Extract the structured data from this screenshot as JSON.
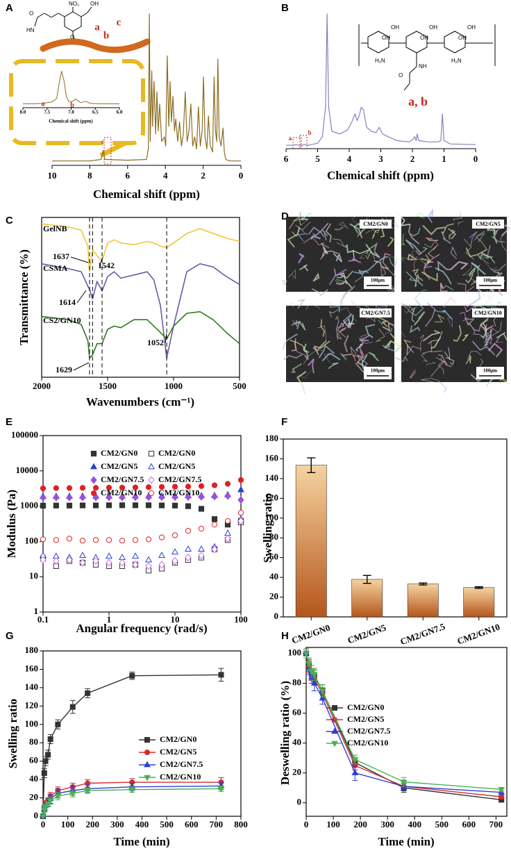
{
  "chart_data": [
    {
      "type": "line",
      "label": "A",
      "xlabel": "Chemical shift (ppm)",
      "xlim": [
        10,
        0
      ],
      "xticks": [
        10,
        8,
        6,
        4,
        2,
        0
      ],
      "ylim": [
        0,
        100
      ],
      "color": "#8b6c1e",
      "x": [
        10,
        8,
        7.4,
        7.3,
        7.2,
        6,
        5.0,
        4.9,
        4.85,
        4.8,
        4.72,
        4.68,
        4.6,
        4.52,
        4.45,
        4.38,
        4.3,
        4.2,
        4.05,
        3.98,
        3.9,
        3.82,
        3.75,
        3.68,
        3.6,
        3.52,
        3.45,
        3.35,
        3.25,
        3.15,
        3.05,
        2.95,
        2.85,
        2.75,
        2.65,
        2.55,
        2.45,
        2.35,
        2.25,
        2.15,
        2.05,
        1.98,
        1.9,
        1.8,
        1.72,
        1.62,
        1.5,
        1.42,
        1.35,
        1.28,
        1.22,
        1.15,
        1.05,
        0.95,
        0.88,
        0.8,
        0.6,
        0
      ],
      "values": [
        2,
        2,
        3,
        9,
        3,
        2.5,
        3,
        10,
        100,
        15,
        62,
        25,
        55,
        20,
        48,
        22,
        40,
        15,
        18,
        12,
        72,
        25,
        55,
        28,
        45,
        22,
        30,
        15,
        28,
        12,
        20,
        48,
        15,
        22,
        40,
        12,
        18,
        10,
        38,
        12,
        22,
        58,
        18,
        10,
        32,
        12,
        8,
        58,
        22,
        15,
        70,
        18,
        12,
        24,
        8,
        3,
        2,
        2
      ],
      "structure_labels": [
        "NO₂",
        "OH",
        "O",
        "HN",
        "O"
      ],
      "annotations": [
        "a",
        "b",
        "c",
        "c"
      ]
    },
    {
      "type": "line",
      "xlabel": "Chemical shift (ppm)",
      "xlim": [
        8,
        6
      ],
      "xticks": [
        {
          "value": 8,
          "label": "8.0"
        },
        7.5,
        {
          "value": 7,
          "label": "7.0"
        },
        6.5,
        {
          "value": 6,
          "label": "6.0"
        }
      ],
      "ylim": [
        0,
        100
      ],
      "color": "#8b6c1e",
      "x": [
        8,
        7.8,
        7.6,
        7.4,
        7.3,
        7.25,
        7.2,
        7.15,
        7.1,
        7.05,
        7.0,
        6.95,
        6.9,
        6.85,
        6.8,
        6.7,
        6.6,
        6.4,
        6.2,
        6.0
      ],
      "values": [
        5,
        5,
        6,
        10,
        20,
        60,
        95,
        70,
        25,
        12,
        10,
        14,
        18,
        12,
        8,
        12,
        6,
        5,
        5,
        5
      ],
      "annotations": [
        "a",
        "b"
      ]
    },
    {
      "type": "line",
      "label": "B",
      "xlabel": "Chemical shift (ppm)",
      "xlim": [
        6,
        0
      ],
      "xticks": [
        6,
        5,
        4,
        3,
        2,
        1,
        0
      ],
      "ylim": [
        0,
        100
      ],
      "color": "#8e7cc3",
      "x": [
        6,
        5.8,
        5.7,
        5.6,
        5.5,
        5.4,
        5.3,
        5.0,
        4.85,
        4.75,
        4.7,
        4.65,
        4.55,
        4.3,
        4.05,
        3.9,
        3.82,
        3.75,
        3.68,
        3.62,
        3.55,
        3.45,
        3.3,
        3.15,
        3.05,
        2.95,
        2.5,
        2.1,
        1.98,
        1.93,
        1.88,
        1.85,
        1.8,
        1.5,
        1.2,
        1.1,
        1.05,
        1.0,
        0.8,
        0
      ],
      "values": [
        1.5,
        1.5,
        2,
        1.5,
        1.5,
        2,
        1.5,
        3,
        8,
        30,
        100,
        30,
        12,
        10,
        13,
        20,
        25,
        20,
        24,
        30,
        28,
        15,
        12,
        11,
        15,
        10,
        5,
        4,
        6,
        8,
        5,
        10,
        5,
        4,
        4,
        5,
        25,
        5,
        2.5,
        2
      ],
      "structure_labels": [
        "OH",
        "OH",
        "OH",
        "OH",
        "OH",
        "OH",
        "H₂N",
        "NH",
        "H₂N",
        "O"
      ],
      "annotations": [
        "a",
        "b",
        "a, b"
      ]
    },
    {
      "type": "line",
      "label": "C",
      "xlabel": "Wavenumbers (cm⁻¹)",
      "ylabel": "Transmittance (%)",
      "xlim": [
        2000,
        500
      ],
      "xticks": [
        2000,
        1500,
        1000,
        500
      ],
      "ylim": [
        0,
        100
      ],
      "x": [
        2000,
        1800,
        1700,
        1650,
        1637,
        1614,
        1580,
        1542,
        1500,
        1450,
        1400,
        1300,
        1200,
        1150,
        1100,
        1052,
        1000,
        900,
        800,
        700,
        600,
        500
      ],
      "series": [
        {
          "name": "GelNB",
          "color": "#f0c63a",
          "values": [
            96,
            94,
            92,
            82,
            66,
            80,
            76,
            73,
            84,
            86,
            84,
            83,
            85,
            84,
            82,
            81,
            84,
            90,
            93,
            90,
            87,
            85
          ]
        },
        {
          "name": "CSMA",
          "color": "#6a5aa8",
          "values": [
            71,
            68,
            66,
            57,
            55,
            49,
            60,
            54,
            63,
            66,
            62,
            64,
            66,
            61,
            45,
            12,
            32,
            66,
            71,
            69,
            63,
            58
          ]
        },
        {
          "name": "CS2/GN10",
          "color": "#2f7a1f",
          "values": [
            38,
            36,
            33,
            23,
            12,
            14,
            21,
            21,
            30,
            32,
            31,
            36,
            36,
            32,
            28,
            24,
            32,
            40,
            41,
            36,
            28,
            21
          ]
        }
      ],
      "reference_lines": [
        1637,
        1614,
        1542,
        1052
      ],
      "peak_labels": [
        1637,
        1542,
        1614,
        1052,
        1629
      ]
    },
    {
      "type": "images",
      "label": "D",
      "images": [
        {
          "caption": "CM2/GN0",
          "scale_bar": "100μm"
        },
        {
          "caption": "CM2/GN5",
          "scale_bar": "100μm"
        },
        {
          "caption": "CM2/GN7.5",
          "scale_bar": "100μm"
        },
        {
          "caption": "CM2/GN10",
          "scale_bar": "100μm"
        }
      ]
    },
    {
      "type": "scatter",
      "label": "E",
      "xlabel": "Angular frequency (rad/s)",
      "ylabel": "Modulus (Pa)",
      "xscale": "log",
      "yscale": "log",
      "xlim": [
        0.1,
        100
      ],
      "ylim": [
        1,
        100000
      ],
      "xticks": [
        0.1,
        1,
        10,
        100
      ],
      "yticks": [
        1,
        10,
        100,
        1000,
        10000,
        100000
      ],
      "x": [
        0.1,
        0.158,
        0.251,
        0.398,
        0.631,
        1,
        1.585,
        2.512,
        3.981,
        6.31,
        10,
        15.85,
        25.12,
        39.81,
        63.1,
        100
      ],
      "series": [
        {
          "name": "CM2/GN0",
          "color": "#333333",
          "marker": "square",
          "filled": true,
          "values": [
            1030,
            1040,
            1040,
            1050,
            1050,
            1060,
            1060,
            1060,
            1060,
            1050,
            1040,
            1000,
            840,
            430,
            300,
            380
          ]
        },
        {
          "name": "CM2/GN5",
          "color": "#2b3fd6",
          "marker": "triangle",
          "filled": true,
          "values": [
            1900,
            1900,
            1900,
            1920,
            1920,
            1930,
            1930,
            1940,
            1940,
            1950,
            1960,
            1960,
            1980,
            2000,
            2100,
            2900
          ]
        },
        {
          "name": "CM2/GN7.5",
          "color": "#9b50d8",
          "marker": "diamond",
          "filled": true,
          "values": [
            1750,
            1760,
            1760,
            1770,
            1770,
            1780,
            1780,
            1790,
            1800,
            1800,
            1810,
            1820,
            1840,
            1880,
            1950,
            1500
          ]
        },
        {
          "name": "CM2/GN10",
          "color": "#e02020",
          "marker": "circle",
          "filled": true,
          "values": [
            3200,
            3250,
            3250,
            3300,
            3300,
            3350,
            3350,
            3400,
            3450,
            3500,
            3550,
            3600,
            3700,
            3900,
            4300,
            5500
          ]
        },
        {
          "name": "CM2/GN0",
          "color": "#333333",
          "marker": "square",
          "filled": false,
          "values": [
            33,
            20,
            28,
            25,
            22,
            20,
            20,
            22,
            15,
            17,
            25,
            30,
            35,
            60,
            110,
            350
          ]
        },
        {
          "name": "CM2/GN5",
          "color": "#2b3fd6",
          "marker": "triangle",
          "filled": false,
          "values": [
            40,
            38,
            35,
            40,
            35,
            38,
            35,
            38,
            30,
            40,
            50,
            60,
            60,
            70,
            170,
            430
          ]
        },
        {
          "name": "CM2/GN7.5",
          "color": "#d070e0",
          "marker": "diamond",
          "filled": false,
          "values": [
            30,
            28,
            30,
            25,
            28,
            25,
            25,
            22,
            20,
            22,
            28,
            35,
            40,
            60,
            120,
            380
          ]
        },
        {
          "name": "CM2/GN10",
          "color": "#e02020",
          "marker": "circle",
          "filled": false,
          "values": [
            115,
            110,
            120,
            105,
            110,
            110,
            105,
            110,
            115,
            130,
            150,
            200,
            230,
            300,
            380,
            650
          ]
        }
      ]
    },
    {
      "type": "bar",
      "label": "F",
      "ylabel": "Swelling ratio",
      "categories": [
        "CM2/GN0",
        "CM2/GN5",
        "CM2/GN7.5",
        "CM2/GN10"
      ],
      "values": [
        153.5,
        38,
        33.3,
        29.7
      ],
      "errors": [
        7.5,
        4,
        1,
        0.8
      ],
      "gradient": [
        "#f5d3a0",
        "#b5561b"
      ],
      "ylim": [
        0,
        180
      ],
      "yticks": [
        0,
        20,
        40,
        60,
        80,
        100,
        120,
        140,
        160,
        180
      ]
    },
    {
      "type": "line",
      "label": "G",
      "xlabel": "Time (min)",
      "ylabel": "Swelling ratio",
      "xlim": [
        0,
        800
      ],
      "xticks": [
        0,
        100,
        200,
        300,
        400,
        500,
        600,
        700,
        800
      ],
      "ylim": [
        0,
        180
      ],
      "yticks": [
        0,
        20,
        40,
        60,
        80,
        100,
        120,
        140,
        160,
        180
      ],
      "x": [
        0,
        5,
        10,
        20,
        30,
        60,
        120,
        180,
        360,
        720
      ],
      "series": [
        {
          "name": "CM2/GN0",
          "color": "#333333",
          "marker": "square",
          "values": [
            0,
            47,
            60,
            67,
            84,
            100,
            119,
            134,
            153,
            154
          ],
          "errors": [
            0,
            5,
            5,
            5,
            5,
            5,
            7,
            5,
            4,
            7
          ]
        },
        {
          "name": "CM2/GN5",
          "color": "#d62b2b",
          "marker": "circle",
          "values": [
            0,
            10,
            14,
            17,
            22,
            28,
            32,
            36,
            37,
            37
          ],
          "errors": [
            0,
            3,
            3,
            3,
            4,
            4,
            4,
            4,
            4,
            5
          ]
        },
        {
          "name": "CM2/GN7.5",
          "color": "#2b3fd6",
          "marker": "triangle",
          "values": [
            0,
            8,
            12,
            15,
            19,
            25,
            28,
            30,
            32,
            33
          ],
          "errors": [
            0,
            3,
            3,
            4,
            5,
            5,
            5,
            4,
            4,
            4
          ]
        },
        {
          "name": "CM2/GN10",
          "color": "#4caf50",
          "marker": "down",
          "values": [
            0,
            7,
            10,
            13,
            17,
            22,
            25,
            28,
            29,
            30
          ],
          "errors": [
            0,
            3,
            3,
            3,
            4,
            4,
            4,
            3,
            3,
            3
          ]
        }
      ]
    },
    {
      "type": "line",
      "label": "H",
      "xlabel": "Time (min)",
      "ylabel": "Deswelling ratio (%)",
      "xlim": [
        0,
        740
      ],
      "xticks": [
        0,
        100,
        200,
        300,
        400,
        500,
        600,
        700
      ],
      "ylim": [
        -9,
        104
      ],
      "yticks": [
        0,
        20,
        40,
        60,
        80,
        100
      ],
      "x": [
        0,
        10,
        20,
        30,
        60,
        180,
        360,
        720
      ],
      "series": [
        {
          "name": "CM2/GN0",
          "color": "#333333",
          "marker": "square",
          "values": [
            100,
            92,
            86,
            85,
            75,
            27,
            10,
            2
          ],
          "errors": [
            3,
            4,
            4,
            4,
            4,
            3,
            3,
            1
          ]
        },
        {
          "name": "CM2/GN5",
          "color": "#d62b2b",
          "marker": "circle",
          "values": [
            100,
            91,
            86,
            83,
            73,
            25,
            11,
            4
          ],
          "errors": [
            3,
            4,
            4,
            4,
            4,
            3,
            3,
            1
          ]
        },
        {
          "name": "CM2/GN7.5",
          "color": "#2b3fd6",
          "marker": "triangle",
          "values": [
            100,
            90,
            84,
            80,
            70,
            20,
            11,
            7
          ],
          "errors": [
            3,
            4,
            4,
            5,
            4,
            5,
            3,
            1
          ]
        },
        {
          "name": "CM2/GN10",
          "color": "#4caf50",
          "marker": "down",
          "values": [
            100,
            93,
            88,
            86,
            75,
            29,
            14,
            9
          ],
          "errors": [
            3,
            4,
            4,
            4,
            4,
            3,
            3,
            1
          ]
        }
      ]
    }
  ]
}
